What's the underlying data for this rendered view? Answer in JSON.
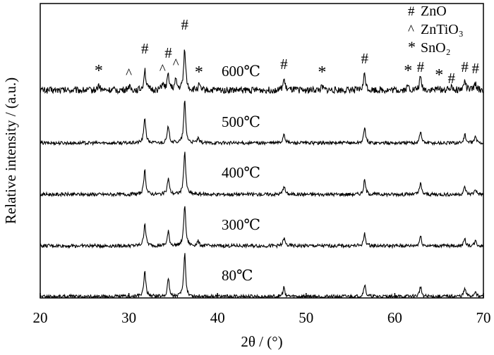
{
  "chart_data": {
    "type": "line",
    "xlabel": "2θ / (°)",
    "ylabel": "Relative intensity / (a.u.)",
    "xlim": [
      20,
      70
    ],
    "x_ticks": [
      20,
      30,
      40,
      50,
      60,
      70
    ],
    "y_ticks_shown": false,
    "grid": false,
    "legend": {
      "placement": "top-right",
      "entries": [
        {
          "symbol": "#",
          "label": "ZnO"
        },
        {
          "symbol": "^",
          "label": "ZnTiO₃"
        },
        {
          "symbol": "*",
          "label": "SnO₂"
        }
      ]
    },
    "line_color": "#000000",
    "series": [
      {
        "name": "600℃",
        "baseline": 0.2,
        "peaks": [
          {
            "x": 26.6,
            "h": 0.25
          },
          {
            "x": 30.0,
            "h": 0.2
          },
          {
            "x": 31.8,
            "h": 1.0
          },
          {
            "x": 33.8,
            "h": 0.3
          },
          {
            "x": 34.45,
            "h": 0.75
          },
          {
            "x": 35.3,
            "h": 0.45
          },
          {
            "x": 36.3,
            "h": 2.0
          },
          {
            "x": 37.9,
            "h": 0.22
          },
          {
            "x": 47.5,
            "h": 0.5
          },
          {
            "x": 51.8,
            "h": 0.15
          },
          {
            "x": 56.6,
            "h": 0.8
          },
          {
            "x": 61.5,
            "h": 0.2
          },
          {
            "x": 62.9,
            "h": 0.6
          },
          {
            "x": 65.0,
            "h": 0.15
          },
          {
            "x": 66.4,
            "h": 0.25
          },
          {
            "x": 67.9,
            "h": 0.45
          },
          {
            "x": 69.1,
            "h": 0.3
          }
        ]
      },
      {
        "name": "500℃",
        "baseline": 0.1,
        "peaks": [
          {
            "x": 31.8,
            "h": 1.2
          },
          {
            "x": 34.45,
            "h": 0.8
          },
          {
            "x": 36.3,
            "h": 2.0
          },
          {
            "x": 37.8,
            "h": 0.2
          },
          {
            "x": 47.5,
            "h": 0.45
          },
          {
            "x": 56.6,
            "h": 0.7
          },
          {
            "x": 62.9,
            "h": 0.55
          },
          {
            "x": 67.9,
            "h": 0.4
          },
          {
            "x": 69.1,
            "h": 0.3
          }
        ]
      },
      {
        "name": "400℃",
        "baseline": 0.1,
        "peaks": [
          {
            "x": 31.8,
            "h": 1.1
          },
          {
            "x": 34.45,
            "h": 0.75
          },
          {
            "x": 36.3,
            "h": 2.0
          },
          {
            "x": 47.5,
            "h": 0.4
          },
          {
            "x": 56.6,
            "h": 0.65
          },
          {
            "x": 62.9,
            "h": 0.5
          },
          {
            "x": 67.9,
            "h": 0.35
          },
          {
            "x": 69.1,
            "h": 0.25
          }
        ]
      },
      {
        "name": "300℃",
        "baseline": 0.1,
        "peaks": [
          {
            "x": 31.8,
            "h": 1.05
          },
          {
            "x": 34.45,
            "h": 0.65
          },
          {
            "x": 36.3,
            "h": 1.9
          },
          {
            "x": 37.8,
            "h": 0.2
          },
          {
            "x": 47.5,
            "h": 0.35
          },
          {
            "x": 56.6,
            "h": 0.55
          },
          {
            "x": 62.9,
            "h": 0.45
          },
          {
            "x": 67.9,
            "h": 0.3
          },
          {
            "x": 69.1,
            "h": 0.22
          }
        ]
      },
      {
        "name": "80℃",
        "baseline": 0.1,
        "peaks": [
          {
            "x": 31.8,
            "h": 1.1
          },
          {
            "x": 34.45,
            "h": 0.8
          },
          {
            "x": 36.3,
            "h": 1.9
          },
          {
            "x": 47.5,
            "h": 0.4
          },
          {
            "x": 56.6,
            "h": 0.55
          },
          {
            "x": 62.9,
            "h": 0.45
          },
          {
            "x": 67.9,
            "h": 0.35
          },
          {
            "x": 69.1,
            "h": 0.25
          }
        ]
      }
    ],
    "peak_markers": [
      {
        "symbol": "*",
        "x": 26.6
      },
      {
        "symbol": "^",
        "x": 30.0
      },
      {
        "symbol": "#",
        "x": 31.8
      },
      {
        "symbol": "^",
        "x": 33.8
      },
      {
        "symbol": "#",
        "x": 34.45
      },
      {
        "symbol": "^",
        "x": 35.3
      },
      {
        "symbol": "#",
        "x": 36.3
      },
      {
        "symbol": "*",
        "x": 37.9
      },
      {
        "symbol": "#",
        "x": 47.5
      },
      {
        "symbol": "*",
        "x": 51.8
      },
      {
        "symbol": "#",
        "x": 56.6
      },
      {
        "symbol": "*",
        "x": 61.5
      },
      {
        "symbol": "#",
        "x": 62.9
      },
      {
        "symbol": "*",
        "x": 65.0
      },
      {
        "symbol": "#",
        "x": 66.4
      },
      {
        "symbol": "#",
        "x": 67.9
      },
      {
        "symbol": "#",
        "x": 69.1
      }
    ]
  }
}
